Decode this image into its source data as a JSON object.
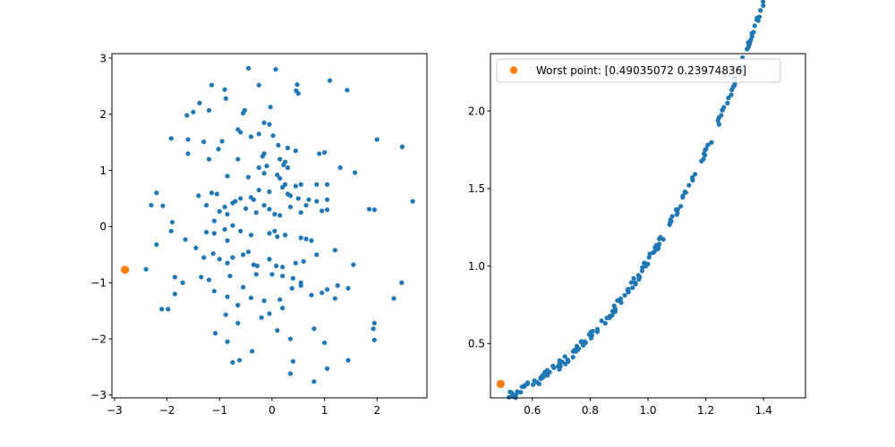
{
  "figure": {
    "background": "#ffffff"
  },
  "chart_data": [
    {
      "type": "scatter",
      "title": "",
      "xlabel": "",
      "ylabel": "",
      "xlim": [
        -3.05,
        2.95
      ],
      "ylim": [
        -3.05,
        3.08
      ],
      "xticks": [
        -3,
        -2,
        -1,
        0,
        1,
        2
      ],
      "xtick_labels": [
        "−3",
        "−2",
        "−1",
        "0",
        "1",
        "2"
      ],
      "yticks": [
        -3,
        -2,
        -1,
        0,
        1,
        2,
        3
      ],
      "ytick_labels": [
        "−3",
        "−2",
        "−1",
        "0",
        "1",
        "2",
        "3"
      ],
      "grid": false,
      "series": [
        {
          "color": "#1f77b4",
          "marker_size": "small",
          "points": [
            [
              -0.45,
              2.82
            ],
            [
              0.07,
              2.8
            ],
            [
              -1.15,
              2.52
            ],
            [
              -0.25,
              2.52
            ],
            [
              0.48,
              2.53
            ],
            [
              1.1,
              2.6
            ],
            [
              -0.9,
              2.44
            ],
            [
              0.46,
              2.42
            ],
            [
              0.5,
              2.37
            ],
            [
              1.43,
              2.43
            ],
            [
              -0.88,
              2.28
            ],
            [
              -1.38,
              2.2
            ],
            [
              -1.2,
              2.07
            ],
            [
              -1.5,
              2.04
            ],
            [
              -0.52,
              2.07
            ],
            [
              -0.55,
              2.02
            ],
            [
              -1.62,
              1.98
            ],
            [
              -0.03,
              2.13
            ],
            [
              -0.15,
              1.85
            ],
            [
              -0.05,
              1.82
            ],
            [
              -0.65,
              1.73
            ],
            [
              -0.6,
              1.68
            ],
            [
              -1.92,
              1.57
            ],
            [
              -1.6,
              1.55
            ],
            [
              -1.3,
              1.51
            ],
            [
              -0.95,
              1.52
            ],
            [
              -0.4,
              1.6
            ],
            [
              -0.25,
              1.65
            ],
            [
              0.02,
              1.62
            ],
            [
              0.12,
              1.45
            ],
            [
              0.3,
              1.4
            ],
            [
              0.45,
              1.35
            ],
            [
              1.0,
              1.32
            ],
            [
              0.9,
              1.3
            ],
            [
              2.0,
              1.55
            ],
            [
              2.48,
              1.42
            ],
            [
              -1.6,
              1.3
            ],
            [
              -1.2,
              1.2
            ],
            [
              -0.65,
              1.2
            ],
            [
              -0.15,
              1.3
            ],
            [
              -0.18,
              1.25
            ],
            [
              -0.1,
              1.08
            ],
            [
              -0.25,
              1.05
            ],
            [
              0.15,
              1.2
            ],
            [
              0.25,
              1.15
            ],
            [
              0.3,
              1.05
            ],
            [
              0.22,
              1.1
            ],
            [
              1.3,
              1.05
            ],
            [
              1.58,
              0.96
            ],
            [
              -1.02,
              1.38
            ],
            [
              -0.85,
              0.9
            ],
            [
              -0.45,
              0.88
            ],
            [
              -0.15,
              0.95
            ],
            [
              0.1,
              0.92
            ],
            [
              0.15,
              0.86
            ],
            [
              0.25,
              0.75
            ],
            [
              0.2,
              0.7
            ],
            [
              0.45,
              0.72
            ],
            [
              0.55,
              0.75
            ],
            [
              0.85,
              0.75
            ],
            [
              1.05,
              0.75
            ],
            [
              -2.2,
              0.6
            ],
            [
              -2.3,
              0.38
            ],
            [
              -2.08,
              0.37
            ],
            [
              -1.4,
              0.55
            ],
            [
              -1.15,
              0.6
            ],
            [
              -1.05,
              0.58
            ],
            [
              -0.7,
              0.45
            ],
            [
              -0.6,
              0.5
            ],
            [
              -0.4,
              0.52
            ],
            [
              -0.35,
              0.48
            ],
            [
              -0.25,
              0.65
            ],
            [
              -0.05,
              0.62
            ],
            [
              0.3,
              0.58
            ],
            [
              0.35,
              0.55
            ],
            [
              0.5,
              0.5
            ],
            [
              0.7,
              0.48
            ],
            [
              0.85,
              0.45
            ],
            [
              1.05,
              0.48
            ],
            [
              1.85,
              0.31
            ],
            [
              1.95,
              0.3
            ],
            [
              2.68,
              0.45
            ],
            [
              -1.9,
              0.08
            ],
            [
              -1.92,
              -0.08
            ],
            [
              -1.25,
              0.38
            ],
            [
              -1.0,
              0.27
            ],
            [
              -1.1,
              0.1
            ],
            [
              -0.85,
              0.22
            ],
            [
              -0.75,
              0.42
            ],
            [
              -0.9,
              0.35
            ],
            [
              -0.5,
              0.32
            ],
            [
              -0.3,
              0.25
            ],
            [
              -0.15,
              0.38
            ],
            [
              -0.05,
              0.31
            ],
            [
              0.05,
              0.22
            ],
            [
              0.15,
              0.2
            ],
            [
              0.35,
              0.35
            ],
            [
              0.55,
              0.25
            ],
            [
              0.65,
              0.38
            ],
            [
              0.95,
              0.28
            ],
            [
              1.05,
              0.3
            ],
            [
              -2.2,
              -0.32
            ],
            [
              -1.65,
              -0.23
            ],
            [
              -1.25,
              -0.1
            ],
            [
              -1.1,
              -0.12
            ],
            [
              -0.85,
              -0.25
            ],
            [
              -0.9,
              -0.05
            ],
            [
              -0.75,
              0.02
            ],
            [
              -0.6,
              -0.08
            ],
            [
              -0.4,
              -0.15
            ],
            [
              -0.05,
              -0.12
            ],
            [
              0.05,
              -0.08
            ],
            [
              0.1,
              -0.18
            ],
            [
              0.25,
              -0.15
            ],
            [
              0.55,
              -0.2
            ],
            [
              0.65,
              -0.22
            ],
            [
              0.75,
              -0.25
            ],
            [
              -2.4,
              -0.76
            ],
            [
              -1.45,
              -0.38
            ],
            [
              -1.3,
              -0.55
            ],
            [
              -1.12,
              -0.48
            ],
            [
              -1.0,
              -0.58
            ],
            [
              -0.85,
              -0.65
            ],
            [
              -0.75,
              -0.55
            ],
            [
              -0.55,
              -0.5
            ],
            [
              -0.45,
              -0.45
            ],
            [
              -0.35,
              -0.68
            ],
            [
              -0.28,
              -0.7
            ],
            [
              -0.05,
              -0.58
            ],
            [
              0.08,
              -0.7
            ],
            [
              0.2,
              -0.72
            ],
            [
              0.45,
              -0.65
            ],
            [
              0.6,
              -0.62
            ],
            [
              0.85,
              -0.5
            ],
            [
              1.2,
              -0.42
            ],
            [
              -1.85,
              -0.9
            ],
            [
              -1.7,
              -1.0
            ],
            [
              -1.35,
              -0.9
            ],
            [
              -1.2,
              -0.95
            ],
            [
              -0.8,
              -0.88
            ],
            [
              -0.55,
              -1.08
            ],
            [
              -0.3,
              -0.85
            ],
            [
              0.0,
              -0.85
            ],
            [
              0.2,
              -0.88
            ],
            [
              0.4,
              -0.92
            ],
            [
              0.55,
              -1.0
            ],
            [
              1.55,
              -0.68
            ],
            [
              2.47,
              -1.0
            ],
            [
              -2.1,
              -1.47
            ],
            [
              -1.98,
              -1.47
            ],
            [
              -1.85,
              -1.2
            ],
            [
              -1.1,
              -1.15
            ],
            [
              -0.85,
              -1.25
            ],
            [
              -0.65,
              -1.4
            ],
            [
              -0.4,
              -1.27
            ],
            [
              -0.15,
              -1.32
            ],
            [
              0.15,
              -1.3
            ],
            [
              0.38,
              -1.1
            ],
            [
              0.55,
              -1.05
            ],
            [
              0.75,
              -1.22
            ],
            [
              0.95,
              -1.18
            ],
            [
              1.05,
              -1.12
            ],
            [
              1.25,
              -1.05
            ],
            [
              1.45,
              -1.1
            ],
            [
              1.2,
              -1.28
            ],
            [
              2.32,
              -1.28
            ],
            [
              -0.88,
              -1.57
            ],
            [
              -0.05,
              -1.55
            ],
            [
              0.2,
              -1.45
            ],
            [
              -0.65,
              -1.72
            ],
            [
              -0.2,
              -1.62
            ],
            [
              -1.08,
              -1.9
            ],
            [
              0.1,
              -1.85
            ],
            [
              0.35,
              -2.0
            ],
            [
              0.8,
              -1.82
            ],
            [
              1.95,
              -1.72
            ],
            [
              1.93,
              -1.82
            ],
            [
              1.95,
              -2.02
            ],
            [
              -0.85,
              -2.05
            ],
            [
              -0.38,
              -2.22
            ],
            [
              1.0,
              -2.07
            ],
            [
              -0.75,
              -2.42
            ],
            [
              -0.62,
              -2.38
            ],
            [
              0.4,
              -2.4
            ],
            [
              1.45,
              -2.38
            ],
            [
              0.35,
              -2.62
            ],
            [
              1.05,
              -2.53
            ],
            [
              0.8,
              -2.76
            ]
          ]
        },
        {
          "color": "#ff7f0e",
          "marker_size": "large",
          "points": [
            [
              -2.8,
              -0.77
            ]
          ]
        }
      ]
    },
    {
      "type": "scatter",
      "title": "",
      "xlabel": "",
      "ylabel": "",
      "xlim": [
        0.455,
        1.545
      ],
      "ylim": [
        0.15,
        2.37
      ],
      "xticks": [
        0.6,
        0.8,
        1.0,
        1.2,
        1.4
      ],
      "xtick_labels": [
        "0.6",
        "0.8",
        "1.0",
        "1.2",
        "1.4"
      ],
      "yticks": [
        0.5,
        1.0,
        1.5,
        2.0
      ],
      "ytick_labels": [
        "0.5",
        "1.0",
        "1.5",
        "2.0"
      ],
      "grid": false,
      "curve": {
        "a": 1.032,
        "b": 2.86,
        "count": 200,
        "jitter": 0.028,
        "seed": 7
      },
      "series": [
        {
          "color": "#1f77b4",
          "marker_size": "small",
          "x_range": [
            0.515,
            1.515
          ]
        },
        {
          "color": "#ff7f0e",
          "marker_size": "large",
          "points": [
            [
              0.49035072,
              0.23974836
            ]
          ]
        }
      ],
      "legend": {
        "placement": "upper-left",
        "label": "Worst point: [0.49035072 0.23974836]"
      }
    }
  ]
}
